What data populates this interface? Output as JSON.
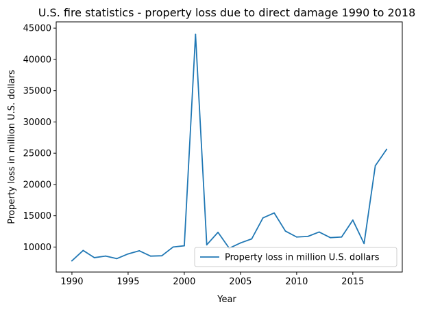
{
  "chart_data": {
    "type": "line",
    "title": "U.S. fire statistics - property loss due to direct damage 1990 to 2018",
    "xlabel": "Year",
    "ylabel": "Property loss in million U.S. dollars",
    "xlim": [
      1988.6,
      2019.4
    ],
    "ylim": [
      6000,
      46000
    ],
    "xticks": [
      1990,
      1995,
      2000,
      2005,
      2010,
      2015
    ],
    "yticks": [
      10000,
      15000,
      20000,
      25000,
      30000,
      35000,
      40000,
      45000
    ],
    "grid": false,
    "legend_position": "lower-right",
    "series": [
      {
        "name": "Property loss in million U.S. dollars",
        "color": "#1f77b4",
        "x": [
          1990,
          1991,
          1992,
          1993,
          1994,
          1995,
          1996,
          1997,
          1998,
          1999,
          2000,
          2001,
          2002,
          2003,
          2004,
          2005,
          2006,
          2007,
          2008,
          2009,
          2010,
          2011,
          2012,
          2013,
          2014,
          2015,
          2016,
          2017,
          2018
        ],
        "values": [
          7800,
          9450,
          8300,
          8550,
          8150,
          8900,
          9400,
          8550,
          8600,
          10000,
          10200,
          44000,
          10350,
          12350,
          9800,
          10650,
          11300,
          14650,
          15450,
          12550,
          11600,
          11700,
          12400,
          11500,
          11600,
          14300,
          10550,
          23000,
          25600
        ]
      }
    ]
  }
}
